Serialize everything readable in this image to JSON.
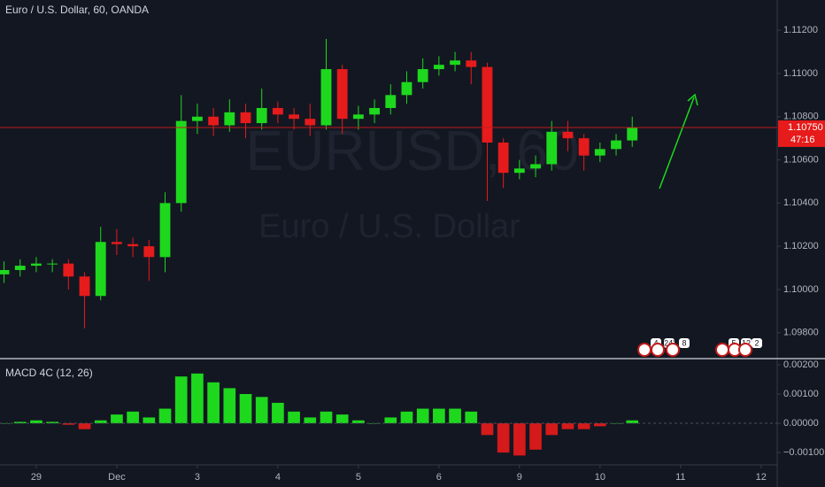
{
  "chart_data": [
    {
      "type": "candlestick",
      "title": "Euro / U.S. Dollar, 60, OANDA",
      "watermark": [
        "EURUSD, 60",
        "Euro / U.S. Dollar"
      ],
      "x": [
        -0.4,
        -0.2,
        0,
        0.2,
        0.4,
        0.6,
        0.8,
        1.0,
        1.2,
        1.4,
        1.6,
        1.8,
        2.0,
        2.2,
        2.4,
        2.6,
        2.8,
        3.0,
        3.2,
        3.4,
        3.6,
        3.8,
        4.0,
        4.2,
        4.4,
        4.6,
        4.8,
        5.0,
        5.2,
        5.4,
        5.6,
        5.8,
        6.0,
        6.2,
        6.4,
        6.6,
        6.8,
        7.0,
        7.2,
        7.4
      ],
      "open": [
        1.1007,
        1.1009,
        1.1011,
        1.1012,
        1.1012,
        1.1006,
        1.0997,
        1.1022,
        1.1021,
        1.102,
        1.1015,
        1.104,
        1.1078,
        1.108,
        1.1076,
        1.1082,
        1.1077,
        1.1084,
        1.1081,
        1.1079,
        1.1076,
        1.1102,
        1.1079,
        1.1081,
        1.1084,
        1.109,
        1.1096,
        1.1102,
        1.1104,
        1.1106,
        1.1103,
        1.1068,
        1.1054,
        1.1056,
        1.1058,
        1.1073,
        1.107,
        1.1062,
        1.1065,
        1.1069
      ],
      "high": [
        1.1013,
        1.1014,
        1.1015,
        1.1014,
        1.1014,
        1.1008,
        1.1029,
        1.1028,
        1.1024,
        1.1023,
        1.1045,
        1.109,
        1.1086,
        1.1084,
        1.1088,
        1.1086,
        1.1093,
        1.1087,
        1.1084,
        1.1086,
        1.1116,
        1.1104,
        1.1085,
        1.1088,
        1.1095,
        1.1101,
        1.1107,
        1.1108,
        1.111,
        1.111,
        1.1105,
        1.107,
        1.106,
        1.1062,
        1.1078,
        1.1078,
        1.1072,
        1.1068,
        1.1072,
        1.108
      ],
      "low": [
        1.1003,
        1.1006,
        1.1008,
        1.1008,
        1.1,
        1.0982,
        1.0995,
        1.1016,
        1.1015,
        1.1004,
        1.1008,
        1.1036,
        1.1072,
        1.1071,
        1.1073,
        1.107,
        1.1074,
        1.1077,
        1.1074,
        1.1071,
        1.1074,
        1.1072,
        1.1074,
        1.1077,
        1.1081,
        1.1086,
        1.1093,
        1.1099,
        1.1101,
        1.1095,
        1.1041,
        1.1047,
        1.1051,
        1.1052,
        1.1055,
        1.1064,
        1.1055,
        1.1059,
        1.1062,
        1.1066
      ],
      "close": [
        1.1009,
        1.1011,
        1.1012,
        1.1012,
        1.1006,
        1.0997,
        1.1022,
        1.1021,
        1.102,
        1.1015,
        1.104,
        1.1078,
        1.108,
        1.1076,
        1.1082,
        1.1077,
        1.1084,
        1.1081,
        1.1079,
        1.1076,
        1.1102,
        1.1079,
        1.1081,
        1.1084,
        1.109,
        1.1096,
        1.1102,
        1.1104,
        1.1106,
        1.1103,
        1.1068,
        1.1054,
        1.1056,
        1.1058,
        1.1073,
        1.107,
        1.1062,
        1.1065,
        1.1069,
        1.1075
      ],
      "up_color": "#1ed81e",
      "down_color": "#e61b1b",
      "xlim": [
        -0.45,
        9.2
      ],
      "ylim": [
        1.0968,
        1.1134
      ],
      "yticks": [
        {
          "value": 1.098,
          "label": "1.09800"
        },
        {
          "value": 1.1,
          "label": "1.10000"
        },
        {
          "value": 1.102,
          "label": "1.10200"
        },
        {
          "value": 1.104,
          "label": "1.10400"
        },
        {
          "value": 1.106,
          "label": "1.10600"
        },
        {
          "value": 1.108,
          "label": "1.10800"
        },
        {
          "value": 1.11,
          "label": "1.11000"
        },
        {
          "value": 1.112,
          "label": "1.11200"
        }
      ],
      "last_price": {
        "value": 1.1075,
        "label": "1.10750"
      },
      "countdown": "47:16",
      "events": [
        "4",
        "24'",
        "8",
        "5",
        "12",
        "2"
      ]
    },
    {
      "type": "bar",
      "title": "MACD 4C (12, 26)",
      "x": [
        -0.4,
        -0.2,
        0,
        0.2,
        0.4,
        0.6,
        0.8,
        1.0,
        1.2,
        1.4,
        1.6,
        1.8,
        2.0,
        2.2,
        2.4,
        2.6,
        2.8,
        3.0,
        3.2,
        3.4,
        3.6,
        3.8,
        4.0,
        4.2,
        4.4,
        4.6,
        4.8,
        5.0,
        5.2,
        5.4,
        5.6,
        5.8,
        6.0,
        6.2,
        6.4,
        6.6,
        6.8,
        7.0,
        7.2,
        7.4
      ],
      "values": [
        0,
        5e-05,
        0.0001,
        5e-05,
        -5e-05,
        -0.0002,
        0.0001,
        0.0003,
        0.0004,
        0.0002,
        0.0005,
        0.0016,
        0.0017,
        0.0014,
        0.0012,
        0.001,
        0.0009,
        0.0007,
        0.0004,
        0.0002,
        0.0004,
        0.0003,
        0.0001,
        0,
        0.0002,
        0.0004,
        0.0005,
        0.0005,
        0.0005,
        0.0004,
        -0.0004,
        -0.001,
        -0.0011,
        -0.0009,
        -0.0004,
        -0.0002,
        -0.0002,
        -0.0001,
        0,
        0.0001
      ],
      "positive_color": "#1ed81e",
      "negative_color": "#d41a1a",
      "xlim": [
        -0.45,
        9.2
      ],
      "ylim": [
        -0.00142,
        0.00218
      ],
      "yticks": [
        {
          "value": -0.001,
          "label": "−0.00100"
        },
        {
          "value": 0,
          "label": "0.00000"
        },
        {
          "value": 0.001,
          "label": "0.00100"
        },
        {
          "value": 0.002,
          "label": "0.00200"
        }
      ],
      "xticks": [
        {
          "value": 0,
          "label": "29"
        },
        {
          "value": 1,
          "label": "Dec"
        },
        {
          "value": 2,
          "label": "3"
        },
        {
          "value": 3,
          "label": "4"
        },
        {
          "value": 4,
          "label": "5"
        },
        {
          "value": 5,
          "label": "6"
        },
        {
          "value": 6,
          "label": "9"
        },
        {
          "value": 7,
          "label": "10"
        },
        {
          "value": 8,
          "label": "11"
        },
        {
          "value": 9,
          "label": "12"
        }
      ]
    }
  ]
}
